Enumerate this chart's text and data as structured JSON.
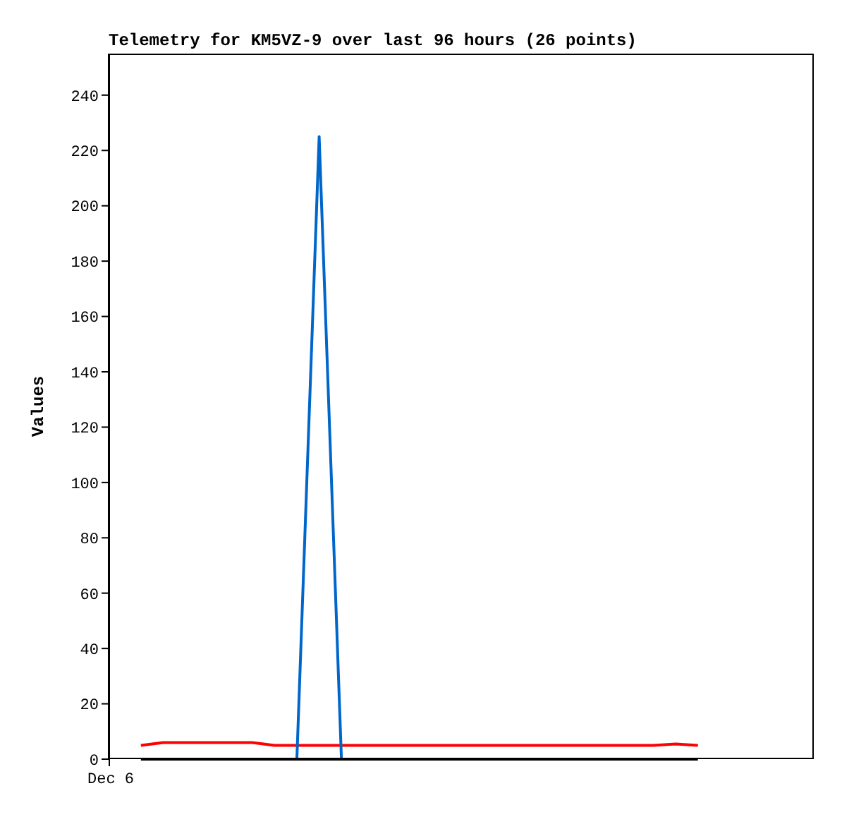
{
  "chart_data": {
    "type": "line",
    "title": "Telemetry for KM5VZ-9 over last 96 hours (26 points)",
    "ylabel": "Values",
    "categories": [
      null,
      null,
      null,
      null,
      null,
      null,
      null,
      null,
      null,
      null,
      null,
      null,
      null,
      null,
      null,
      null,
      null,
      null,
      null,
      null,
      null,
      null,
      null,
      null,
      null,
      null
    ],
    "annotations": [
      "Dec 6"
    ],
    "ylim": [
      0,
      255
    ],
    "yticks": [
      0,
      20,
      40,
      60,
      80,
      100,
      120,
      140,
      160,
      180,
      200,
      220,
      240
    ],
    "grid": false,
    "legend": false,
    "marker": "none",
    "line_style": "solid",
    "series": [
      {
        "color": "#ff0000",
        "values": [
          5,
          6,
          6,
          6,
          6,
          6,
          5,
          5,
          5,
          5,
          5,
          5,
          5,
          5,
          5,
          5,
          5,
          5,
          5,
          5,
          5,
          5,
          5,
          5,
          5.5,
          5
        ]
      },
      {
        "color": "#0066cc",
        "values": [
          null,
          null,
          null,
          null,
          null,
          null,
          null,
          0,
          225,
          0,
          null,
          null,
          null,
          null,
          null,
          null,
          null,
          null,
          null,
          null,
          null,
          null,
          null,
          null,
          null,
          null
        ]
      },
      {
        "color": "#000000",
        "values": [
          0,
          0,
          0,
          0,
          0,
          0,
          0,
          0,
          0,
          0,
          0,
          0,
          0,
          0,
          0,
          0,
          0,
          0,
          0,
          0,
          0,
          0,
          0,
          0,
          0,
          0
        ]
      }
    ]
  }
}
